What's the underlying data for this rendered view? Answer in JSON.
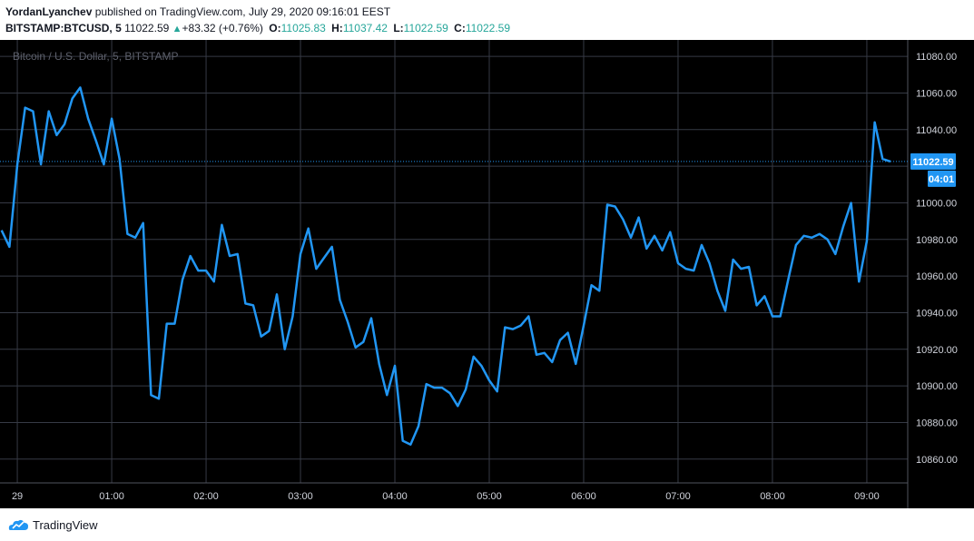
{
  "header": {
    "author": "YordanLyanchev",
    "published_text": "published on TradingView.com, July 29, 2020 09:16:01 EEST",
    "symbol": "BITSTAMP:BTCUSD, 5",
    "price": "11022.59",
    "change": "+83.32 (+0.76%)",
    "open_label": "O:",
    "open_value": "11025.83",
    "high_label": "H:",
    "high_value": "11037.42",
    "low_label": "L:",
    "low_value": "11022.59",
    "close_label": "C:",
    "close_value": "11022.59"
  },
  "watermark": "Bitcoin / U.S. Dollar, 5, BITSTAMP",
  "footer": {
    "brand": "TradingView"
  },
  "colors": {
    "background": "#000000",
    "grid": "#363a45",
    "line": "#2196f3",
    "price_tag": "#2196f3",
    "up": "#26a69a",
    "axis_text": "#d1d4dc"
  },
  "chart_data": {
    "type": "line",
    "ylim": [
      10847,
      11089
    ],
    "y_ticks": [
      11080,
      11060,
      11040,
      11020,
      11000,
      10980,
      10960,
      10940,
      10920,
      10900,
      10880,
      10860
    ],
    "y_tick_labels": [
      "11080.00",
      "11060.00",
      "11040.00",
      "11000.00",
      "10980.00",
      "10960.00",
      "10940.00",
      "10920.00",
      "10900.00",
      "10880.00",
      "10860.00"
    ],
    "x_ticks": [
      {
        "label": "29",
        "t": 0
      },
      {
        "label": "01:00",
        "t": 60
      },
      {
        "label": "02:00",
        "t": 120
      },
      {
        "label": "03:00",
        "t": 180
      },
      {
        "label": "04:00",
        "t": 240
      },
      {
        "label": "05:00",
        "t": 300
      },
      {
        "label": "06:00",
        "t": 360
      },
      {
        "label": "07:00",
        "t": 420
      },
      {
        "label": "08:00",
        "t": 480
      },
      {
        "label": "09:00",
        "t": 540
      }
    ],
    "x_range": [
      -11,
      566
    ],
    "current_price": 11022.59,
    "current_price_label": "11022.59",
    "countdown_label": "04:01",
    "series": [
      {
        "values": [
          [
            -10,
            10985
          ],
          [
            -5,
            10976
          ],
          [
            0,
            11021
          ],
          [
            5,
            11052
          ],
          [
            10,
            11050
          ],
          [
            15,
            11021
          ],
          [
            20,
            11050
          ],
          [
            25,
            11037
          ],
          [
            30,
            11043
          ],
          [
            35,
            11057
          ],
          [
            40,
            11063
          ],
          [
            45,
            11046
          ],
          [
            50,
            11034
          ],
          [
            55,
            11021
          ],
          [
            60,
            11046
          ],
          [
            65,
            11024
          ],
          [
            70,
            10983
          ],
          [
            75,
            10981
          ],
          [
            80,
            10989
          ],
          [
            85,
            10895
          ],
          [
            90,
            10893
          ],
          [
            95,
            10934
          ],
          [
            100,
            10934
          ],
          [
            105,
            10958
          ],
          [
            110,
            10971
          ],
          [
            115,
            10963
          ],
          [
            120,
            10963
          ],
          [
            125,
            10957
          ],
          [
            130,
            10988
          ],
          [
            135,
            10971
          ],
          [
            140,
            10972
          ],
          [
            145,
            10945
          ],
          [
            150,
            10944
          ],
          [
            155,
            10927
          ],
          [
            160,
            10930
          ],
          [
            165,
            10950
          ],
          [
            170,
            10920
          ],
          [
            175,
            10938
          ],
          [
            180,
            10972
          ],
          [
            185,
            10986
          ],
          [
            190,
            10964
          ],
          [
            195,
            10970
          ],
          [
            200,
            10976
          ],
          [
            205,
            10947
          ],
          [
            210,
            10935
          ],
          [
            215,
            10921
          ],
          [
            220,
            10924
          ],
          [
            225,
            10937
          ],
          [
            230,
            10912
          ],
          [
            235,
            10895
          ],
          [
            240,
            10911
          ],
          [
            245,
            10870
          ],
          [
            250,
            10868
          ],
          [
            255,
            10878
          ],
          [
            260,
            10901
          ],
          [
            265,
            10899
          ],
          [
            270,
            10899
          ],
          [
            275,
            10896
          ],
          [
            280,
            10889
          ],
          [
            285,
            10898
          ],
          [
            290,
            10916
          ],
          [
            295,
            10911
          ],
          [
            300,
            10903
          ],
          [
            305,
            10897
          ],
          [
            310,
            10932
          ],
          [
            315,
            10931
          ],
          [
            320,
            10933
          ],
          [
            325,
            10938
          ],
          [
            330,
            10917
          ],
          [
            335,
            10918
          ],
          [
            340,
            10913
          ],
          [
            345,
            10925
          ],
          [
            350,
            10929
          ],
          [
            355,
            10912
          ],
          [
            360,
            10933
          ],
          [
            365,
            10955
          ],
          [
            370,
            10952
          ],
          [
            375,
            10999
          ],
          [
            380,
            10998
          ],
          [
            385,
            10991
          ],
          [
            390,
            10981
          ],
          [
            395,
            10992
          ],
          [
            400,
            10975
          ],
          [
            405,
            10982
          ],
          [
            410,
            10974
          ],
          [
            415,
            10984
          ],
          [
            420,
            10967
          ],
          [
            425,
            10964
          ],
          [
            430,
            10963
          ],
          [
            435,
            10977
          ],
          [
            440,
            10967
          ],
          [
            445,
            10952
          ],
          [
            450,
            10941
          ],
          [
            455,
            10969
          ],
          [
            460,
            10964
          ],
          [
            465,
            10965
          ],
          [
            470,
            10944
          ],
          [
            475,
            10949
          ],
          [
            480,
            10938
          ],
          [
            485,
            10938
          ],
          [
            490,
            10958
          ],
          [
            495,
            10977
          ],
          [
            500,
            10982
          ],
          [
            505,
            10981
          ],
          [
            510,
            10983
          ],
          [
            515,
            10980
          ],
          [
            520,
            10972
          ],
          [
            525,
            10987
          ],
          [
            530,
            11000
          ],
          [
            535,
            10957
          ],
          [
            540,
            10979
          ],
          [
            545,
            11044
          ],
          [
            550,
            11024
          ],
          [
            555,
            11022.59
          ]
        ]
      }
    ]
  }
}
